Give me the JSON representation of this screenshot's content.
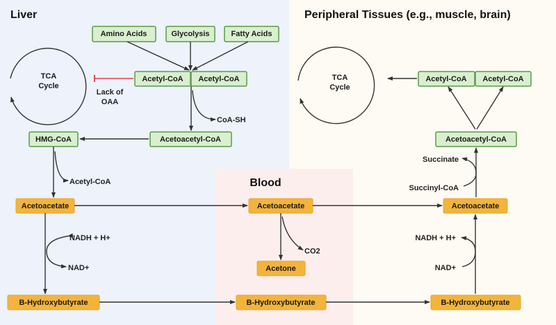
{
  "regions": {
    "liver": "Liver",
    "blood": "Blood",
    "peripheral": "Peripheral Tissues (e.g., muscle, brain)"
  },
  "colors": {
    "liver_bg": "#edf2fb",
    "blood_bg": "#fdeeee",
    "peripheral_bg": "#fdfbf3",
    "green_box": "#d9efcf",
    "orange_box": "#f3b43c",
    "inhibit": "#e8404a"
  },
  "liver": {
    "sources": [
      "Amino Acids",
      "Glycolysis",
      "Fatty Acids"
    ],
    "acetyl_coa": [
      "Acetyl-CoA",
      "Acetyl-CoA"
    ],
    "tca": [
      "TCA",
      "Cycle"
    ],
    "lack": [
      "Lack of",
      "OAA"
    ],
    "coa_sh": "CoA-SH",
    "acetoacetyl_coa": "Acetoacetyl-CoA",
    "hmg_coa": "HMG-CoA",
    "acetyl_coa_out": "Acetyl-CoA",
    "acetoacetate": "Acetoacetate",
    "nadh": "NADH + H+",
    "nad": "NAD+",
    "bhb": "B-Hydroxybutyrate"
  },
  "blood": {
    "acetoacetate": "Acetoacetate",
    "co2": "CO2",
    "acetone": "Acetone",
    "bhb": "B-Hydroxybutyrate"
  },
  "peripheral": {
    "tca": [
      "TCA",
      "Cycle"
    ],
    "acetyl_coa": [
      "Acetyl-CoA",
      "Acetyl-CoA"
    ],
    "acetoacetyl_coa": "Acetoacetyl-CoA",
    "succinate": "Succinate",
    "succinyl_coa": "Succinyl-CoA",
    "acetoacetate": "Acetoacetate",
    "nadh": "NADH + H+",
    "nad": "NAD+",
    "bhb": "B-Hydroxybutyrate"
  }
}
